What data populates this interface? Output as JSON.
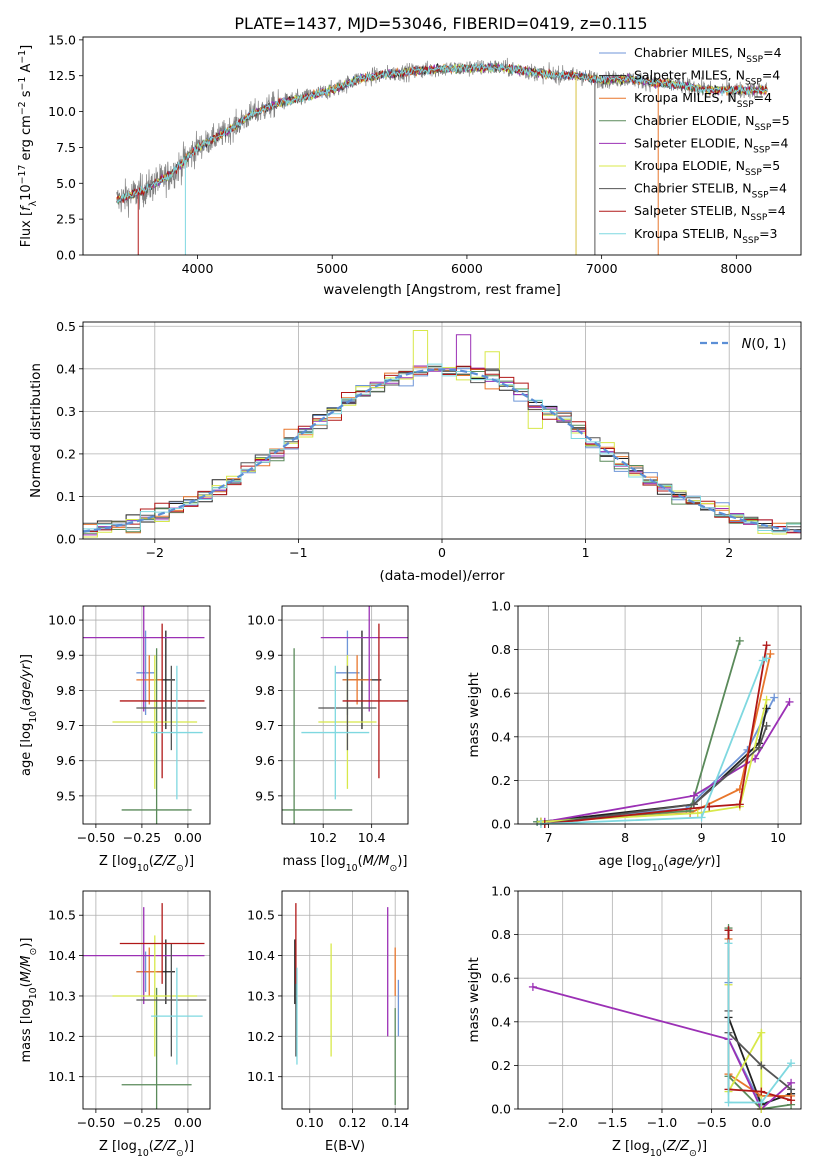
{
  "figure": {
    "title": "PLATE=1437, MJD=53046, FIBERID=0419, z=0.115"
  },
  "legend_entries": [
    {
      "label": "Chabrier MILES, N",
      "sub": "SSP",
      "tail": "=4",
      "color": "#6f96d8"
    },
    {
      "label": "Salpeter MILES, N",
      "sub": "SSP",
      "tail": "=4",
      "color": "#222222"
    },
    {
      "label": "Kroupa MILES, N",
      "sub": "SSP",
      "tail": "=4",
      "color": "#e8762c"
    },
    {
      "label": "Chabrier ELODIE, N",
      "sub": "SSP",
      "tail": "=5",
      "color": "#5a8a5a"
    },
    {
      "label": "Salpeter ELODIE, N",
      "sub": "SSP",
      "tail": "=4",
      "color": "#9b30b5"
    },
    {
      "label": "Kroupa ELODIE, N",
      "sub": "SSP",
      "tail": "=5",
      "color": "#d8e84a"
    },
    {
      "label": "Chabrier STELIB, N",
      "sub": "SSP",
      "tail": "=4",
      "color": "#555555"
    },
    {
      "label": "Salpeter STELIB, N",
      "sub": "SSP",
      "tail": "=4",
      "color": "#b01818"
    },
    {
      "label": "Kroupa STELIB, N",
      "sub": "SSP",
      "tail": "=3",
      "color": "#7fd8e0"
    }
  ],
  "chart_data": [
    {
      "id": "spectrum",
      "type": "line",
      "xlabel": "wavelength [Angstrom, rest frame]",
      "ylabel": "Flux [f",
      "ylabel_parts": [
        "Flux [f",
        "λ",
        "10",
        "−17",
        " erg cm",
        "−2",
        " s",
        "−1",
        " A",
        "−1",
        "]"
      ],
      "xlim": [
        3150,
        8480
      ],
      "ylim": [
        0,
        15.2
      ],
      "xticks": [
        4000,
        5000,
        6000,
        7000,
        8000
      ],
      "yticks": [
        0.0,
        2.5,
        5.0,
        7.5,
        10.0,
        12.5,
        15.0
      ],
      "ytick_labels": [
        "0.0",
        "2.5",
        "5.0",
        "7.5",
        "10.0",
        "12.5",
        "15.0"
      ],
      "continuum_knots": [
        [
          3400,
          3.8
        ],
        [
          3600,
          4.5
        ],
        [
          3800,
          5.6
        ],
        [
          4000,
          7.5
        ],
        [
          4200,
          8.5
        ],
        [
          4400,
          9.8
        ],
        [
          4600,
          10.6
        ],
        [
          4800,
          11.0
        ],
        [
          5000,
          11.5
        ],
        [
          5200,
          12.3
        ],
        [
          5400,
          12.6
        ],
        [
          5600,
          12.8
        ],
        [
          5800,
          13.0
        ],
        [
          6000,
          13.0
        ],
        [
          6200,
          13.1
        ],
        [
          6400,
          12.9
        ],
        [
          6600,
          12.6
        ],
        [
          6800,
          12.5
        ],
        [
          7000,
          12.2
        ],
        [
          7200,
          12.3
        ],
        [
          7400,
          12.0
        ],
        [
          7600,
          11.8
        ],
        [
          7800,
          11.5
        ],
        [
          8000,
          11.5
        ],
        [
          8230,
          11.5
        ]
      ],
      "grid": false,
      "legend_position": "upper right"
    },
    {
      "id": "residuals",
      "type": "bar",
      "xlabel": "(data-model)/error",
      "ylabel": "Normed distribution",
      "xlim": [
        -2.5,
        2.5
      ],
      "ylim": [
        0,
        0.51
      ],
      "xticks": [
        -2,
        -1,
        0,
        1,
        2
      ],
      "xtick_labels": [
        "−2",
        "−1",
        "0",
        "1",
        "2"
      ],
      "yticks": [
        0.0,
        0.1,
        0.2,
        0.3,
        0.4,
        0.5
      ],
      "ytick_labels": [
        "0.0",
        "0.1",
        "0.2",
        "0.3",
        "0.4",
        "0.5"
      ],
      "bin_width": 0.1,
      "grid": true,
      "legend": {
        "label": "N(0,1)",
        "position": "upper right"
      },
      "spike_bins": [
        {
          "x": -0.2,
          "value": 0.49,
          "series": 5
        },
        {
          "x": 0.1,
          "value": 0.48,
          "series": 4
        },
        {
          "x": 0.3,
          "value": 0.44,
          "series": 5
        },
        {
          "x": 0.6,
          "value": 0.26,
          "series": 5
        }
      ]
    },
    {
      "id": "age-vs-Z",
      "type": "scatter",
      "xlabel": "Z [log10(Z/Z⊙)]",
      "ylabel": "age  [log10(age/yr)]",
      "xlim": [
        -0.57,
        0.12
      ],
      "ylim": [
        9.42,
        10.04
      ],
      "xticks": [
        -0.5,
        -0.25,
        0.0
      ],
      "xtick_labels": [
        "−0.50",
        "−0.25",
        "0.00"
      ],
      "yticks": [
        9.5,
        9.6,
        9.7,
        9.8,
        9.9,
        10.0
      ],
      "ytick_labels": [
        "9.5",
        "9.6",
        "9.7",
        "9.8",
        "9.9",
        "10.0"
      ],
      "grid": true,
      "points": [
        {
          "series": 0,
          "x": -0.23,
          "xerr": 0.05,
          "y": 9.85,
          "yerr": 0.12
        },
        {
          "series": 1,
          "x": -0.12,
          "xerr": 0.05,
          "y": 9.83,
          "yerr": 0.14
        },
        {
          "series": 2,
          "x": -0.21,
          "xerr": 0.07,
          "y": 9.83,
          "yerr": 0.07
        },
        {
          "series": 3,
          "x": -0.17,
          "xerr": 0.19,
          "y": 9.46,
          "yerr": 0.46
        },
        {
          "series": 4,
          "x": -0.24,
          "xerr": 0.33,
          "y": 9.95,
          "yerr": 0.21
        },
        {
          "series": 5,
          "x": -0.18,
          "xerr": 0.23,
          "y": 9.71,
          "yerr": 0.19
        },
        {
          "series": 6,
          "x": -0.09,
          "xerr": 0.19,
          "y": 9.75,
          "yerr": 0.12
        },
        {
          "series": 7,
          "x": -0.14,
          "xerr": 0.23,
          "y": 9.77,
          "yerr": 0.22
        },
        {
          "series": 8,
          "x": -0.06,
          "xerr": 0.14,
          "y": 9.68,
          "yerr": 0.19
        }
      ]
    },
    {
      "id": "age-vs-mass",
      "type": "scatter",
      "xlabel": "mass [log10(M/M⊙)]",
      "xlim": [
        10.03,
        10.55
      ],
      "ylim": [
        9.42,
        10.04
      ],
      "xticks": [
        10.2,
        10.4
      ],
      "xtick_labels": [
        "10.2",
        "10.4"
      ],
      "yticks": [
        9.5,
        9.6,
        9.7,
        9.8,
        9.9,
        10.0
      ],
      "ytick_labels": [
        "9.5",
        "9.6",
        "9.7",
        "9.8",
        "9.9",
        "10.0"
      ],
      "grid": true,
      "points": [
        {
          "series": 0,
          "x": 10.3,
          "xerr": 0.05,
          "y": 9.85,
          "yerr": 0.12
        },
        {
          "series": 1,
          "x": 10.36,
          "xerr": 0.08,
          "y": 9.83,
          "yerr": 0.14
        },
        {
          "series": 2,
          "x": 10.34,
          "xerr": 0.06,
          "y": 9.83,
          "yerr": 0.07
        },
        {
          "series": 3,
          "x": 10.08,
          "xerr": 0.24,
          "y": 9.46,
          "yerr": 0.46
        },
        {
          "series": 4,
          "x": 10.39,
          "xerr": 0.2,
          "y": 9.95,
          "yerr": 0.21
        },
        {
          "series": 5,
          "x": 10.3,
          "xerr": 0.12,
          "y": 9.71,
          "yerr": 0.19
        },
        {
          "series": 6,
          "x": 10.3,
          "xerr": 0.12,
          "y": 9.75,
          "yerr": 0.12
        },
        {
          "series": 7,
          "x": 10.43,
          "xerr": 0.15,
          "y": 9.77,
          "yerr": 0.22
        },
        {
          "series": 8,
          "x": 10.25,
          "xerr": 0.14,
          "y": 9.68,
          "yerr": 0.19
        }
      ]
    },
    {
      "id": "weight-vs-age",
      "type": "line",
      "xlabel": "age  [log10(age/yr)]",
      "ylabel": "mass weight",
      "xlim": [
        6.6,
        10.3
      ],
      "ylim": [
        0,
        1
      ],
      "xticks": [
        7,
        8,
        9,
        10
      ],
      "xtick_labels": [
        "7",
        "8",
        "9",
        "10"
      ],
      "yticks": [
        0.0,
        0.2,
        0.4,
        0.6,
        0.8,
        1.0
      ],
      "ytick_labels": [
        "0.0",
        "0.2",
        "0.4",
        "0.6",
        "0.8",
        "1.0"
      ],
      "grid": true,
      "series": [
        {
          "series": 0,
          "points": [
            [
              6.85,
              0.01
            ],
            [
              8.8,
              0.07
            ],
            [
              9.6,
              0.34
            ],
            [
              9.95,
              0.58
            ]
          ]
        },
        {
          "series": 1,
          "points": [
            [
              6.9,
              0.01
            ],
            [
              8.9,
              0.09
            ],
            [
              9.75,
              0.37
            ],
            [
              9.85,
              0.53
            ]
          ]
        },
        {
          "series": 2,
          "points": [
            [
              6.9,
              0.01
            ],
            [
              8.85,
              0.05
            ],
            [
              9.5,
              0.16
            ],
            [
              9.9,
              0.78
            ]
          ]
        },
        {
          "series": 3,
          "points": [
            [
              6.85,
              0.01
            ],
            [
              8.85,
              0.06
            ],
            [
              9.5,
              0.84
            ]
          ]
        },
        {
          "series": 4,
          "points": [
            [
              6.95,
              0.01
            ],
            [
              8.9,
              0.13
            ],
            [
              9.7,
              0.3
            ],
            [
              10.15,
              0.56
            ]
          ]
        },
        {
          "series": 5,
          "points": [
            [
              6.9,
              0.01
            ],
            [
              8.95,
              0.05
            ],
            [
              9.5,
              0.08
            ],
            [
              9.85,
              0.57
            ]
          ]
        },
        {
          "series": 6,
          "points": [
            [
              6.95,
              0.0
            ],
            [
              8.9,
              0.09
            ],
            [
              9.75,
              0.35
            ],
            [
              9.85,
              0.45
            ]
          ]
        },
        {
          "series": 7,
          "points": [
            [
              6.95,
              0.0
            ],
            [
              9.1,
              0.08
            ],
            [
              9.5,
              0.09
            ],
            [
              9.85,
              0.82
            ]
          ]
        },
        {
          "series": 8,
          "points": [
            [
              6.9,
              0.0
            ],
            [
              9.0,
              0.03
            ],
            [
              9.8,
              0.75
            ],
            [
              9.85,
              0.76
            ]
          ]
        }
      ]
    },
    {
      "id": "mass-vs-Z",
      "type": "scatter",
      "xlabel": "Z [log10(Z/Z⊙)]",
      "ylabel": "mass [log10(M/M⊙)]",
      "xlim": [
        -0.57,
        0.12
      ],
      "ylim": [
        10.02,
        10.56
      ],
      "xticks": [
        -0.5,
        -0.25,
        0.0
      ],
      "xtick_labels": [
        "−0.50",
        "−0.25",
        "0.00"
      ],
      "yticks": [
        10.1,
        10.2,
        10.3,
        10.4,
        10.5
      ],
      "ytick_labels": [
        "10.1",
        "10.2",
        "10.3",
        "10.4",
        "10.5"
      ],
      "grid": true,
      "points": [
        {
          "series": 0,
          "x": -0.23,
          "xerr": 0.05,
          "y": 10.36,
          "yerr": 0.05
        },
        {
          "series": 1,
          "x": -0.12,
          "xerr": 0.05,
          "y": 10.36,
          "yerr": 0.08
        },
        {
          "series": 2,
          "x": -0.21,
          "xerr": 0.07,
          "y": 10.36,
          "yerr": 0.06
        },
        {
          "series": 3,
          "x": -0.17,
          "xerr": 0.19,
          "y": 10.08,
          "yerr": 0.24
        },
        {
          "series": 4,
          "x": -0.24,
          "xerr": 0.33,
          "y": 10.4,
          "yerr": 0.12
        },
        {
          "series": 5,
          "x": -0.18,
          "xerr": 0.23,
          "y": 10.3,
          "yerr": 0.15
        },
        {
          "series": 6,
          "x": -0.09,
          "xerr": 0.19,
          "y": 10.29,
          "yerr": 0.14
        },
        {
          "series": 7,
          "x": -0.14,
          "xerr": 0.23,
          "y": 10.43,
          "yerr": 0.1
        },
        {
          "series": 8,
          "x": -0.06,
          "xerr": 0.14,
          "y": 10.25,
          "yerr": 0.12
        }
      ]
    },
    {
      "id": "mass-vs-ebv",
      "type": "scatter",
      "xlabel": "E(B-V)",
      "xlim": [
        0.087,
        0.146
      ],
      "ylim": [
        10.02,
        10.56
      ],
      "xticks": [
        0.1,
        0.12,
        0.14
      ],
      "xtick_labels": [
        "0.10",
        "0.12",
        "0.14"
      ],
      "yticks": [
        10.1,
        10.2,
        10.3,
        10.4,
        10.5
      ],
      "ytick_labels": [
        "10.1",
        "10.2",
        "10.3",
        "10.4",
        "10.5"
      ],
      "grid": true,
      "points": [
        {
          "series": 0,
          "x": 0.1415,
          "y": 10.27,
          "yerr": 0.07
        },
        {
          "series": 1,
          "x": 0.093,
          "y": 10.36,
          "yerr": 0.08
        },
        {
          "series": 2,
          "x": 0.14,
          "y": 10.36,
          "yerr": 0.06
        },
        {
          "series": 3,
          "x": 0.14,
          "y": 10.15,
          "yerr": 0.12
        },
        {
          "series": 4,
          "x": 0.1365,
          "y": 10.36,
          "yerr": 0.16
        },
        {
          "series": 5,
          "x": 0.11,
          "y": 10.29,
          "yerr": 0.14
        },
        {
          "series": 6,
          "x": 0.0935,
          "y": 10.29,
          "yerr": 0.14
        },
        {
          "series": 7,
          "x": 0.0935,
          "y": 10.43,
          "yerr": 0.1
        },
        {
          "series": 8,
          "x": 0.094,
          "y": 10.25,
          "yerr": 0.12
        }
      ]
    },
    {
      "id": "weight-vs-Z",
      "type": "line",
      "xlabel": "Z [log10(Z/Z⊙)]",
      "ylabel": "mass weight",
      "xlim": [
        -2.45,
        0.4
      ],
      "ylim": [
        0,
        1
      ],
      "xticks": [
        -2.0,
        -1.5,
        -1.0,
        -0.5,
        0.0
      ],
      "xtick_labels": [
        "−2.0",
        "−1.5",
        "−1.0",
        "−0.5",
        "0.0"
      ],
      "yticks": [
        0.0,
        0.2,
        0.4,
        0.6,
        0.8,
        1.0
      ],
      "ytick_labels": [
        "0.0",
        "0.2",
        "0.4",
        "0.6",
        "0.8",
        "1.0"
      ],
      "grid": true,
      "series": [
        {
          "series": 0,
          "points": [
            [
              -0.33,
              0.58
            ],
            [
              -0.33,
              0.32
            ],
            [
              0.0,
              0.02
            ],
            [
              0.3,
              0.07
            ]
          ]
        },
        {
          "series": 1,
          "points": [
            [
              -0.33,
              0.82
            ],
            [
              -0.33,
              0.42
            ],
            [
              0.0,
              0.02
            ],
            [
              0.3,
              0.07
            ]
          ]
        },
        {
          "series": 2,
          "points": [
            [
              -0.33,
              0.78
            ],
            [
              -0.33,
              0.16
            ],
            [
              0.0,
              0.06
            ],
            [
              0.3,
              0.06
            ]
          ]
        },
        {
          "series": 3,
          "points": [
            [
              -0.33,
              0.83
            ],
            [
              -0.33,
              0.15
            ],
            [
              0.0,
              0.0
            ],
            [
              0.3,
              0.02
            ]
          ]
        },
        {
          "series": 4,
          "points": [
            [
              -2.3,
              0.56
            ],
            [
              -0.33,
              0.32
            ],
            [
              0.0,
              0.0
            ],
            [
              0.3,
              0.12
            ]
          ]
        },
        {
          "series": 5,
          "points": [
            [
              -0.33,
              0.57
            ],
            [
              -0.33,
              0.08
            ],
            [
              0.0,
              0.35
            ],
            [
              0.0,
              0.0
            ]
          ]
        },
        {
          "series": 6,
          "points": [
            [
              -0.33,
              0.45
            ],
            [
              -0.33,
              0.35
            ],
            [
              0.0,
              0.2
            ],
            [
              0.3,
              0.09
            ]
          ]
        },
        {
          "series": 7,
          "points": [
            [
              -0.33,
              0.82
            ],
            [
              -0.33,
              0.09
            ],
            [
              0.0,
              0.08
            ],
            [
              0.3,
              0.04
            ]
          ]
        },
        {
          "series": 8,
          "points": [
            [
              -0.33,
              0.76
            ],
            [
              -0.33,
              0.03
            ],
            [
              0.0,
              0.03
            ],
            [
              0.3,
              0.21
            ]
          ]
        }
      ]
    }
  ]
}
